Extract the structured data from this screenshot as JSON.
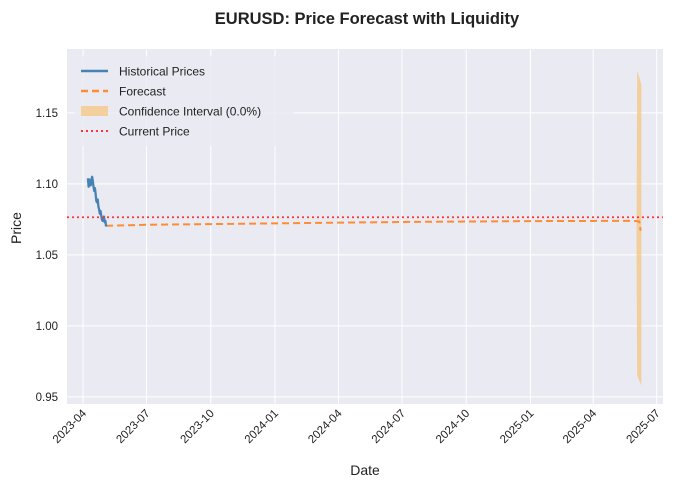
{
  "chart_data": {
    "type": "line",
    "title": "EURUSD: Price Forecast with Liquidity",
    "xlabel": "Date",
    "ylabel": "Price",
    "xlim": [
      "2023-03-09",
      "2025-07-10"
    ],
    "ylim": [
      0.945,
      1.195
    ],
    "x_ticks": [
      "2023-04",
      "2023-07",
      "2023-10",
      "2024-01",
      "2024-04",
      "2024-07",
      "2024-10",
      "2025-01",
      "2025-04",
      "2025-07"
    ],
    "y_ticks": [
      0.95,
      1.0,
      1.05,
      1.1,
      1.15
    ],
    "grid": true,
    "legend_position": "top-left",
    "legend": {
      "historical": "Historical Prices",
      "forecast": "Forecast",
      "ci": "Confidence Interval (0.0%)",
      "current": "Current Price"
    },
    "colors": {
      "historical": "#4682b4",
      "forecast": "#ff8c33",
      "ci_fill": "#f5c580",
      "current": "#ff3333",
      "plot_bg": "#eaeaf2"
    },
    "series": [
      {
        "name": "Historical Prices",
        "style": "solid",
        "points": [
          [
            "2023-04-08",
            1.104
          ],
          [
            "2023-04-09",
            1.098
          ],
          [
            "2023-04-10",
            1.103
          ],
          [
            "2023-04-11",
            1.1
          ],
          [
            "2023-04-12",
            1.099
          ],
          [
            "2023-04-13",
            1.103
          ],
          [
            "2023-04-14",
            1.105
          ],
          [
            "2023-04-15",
            1.102
          ],
          [
            "2023-04-16",
            1.098
          ],
          [
            "2023-04-17",
            1.095
          ],
          [
            "2023-04-18",
            1.097
          ],
          [
            "2023-04-19",
            1.093
          ],
          [
            "2023-04-20",
            1.088
          ],
          [
            "2023-04-21",
            1.087
          ],
          [
            "2023-04-22",
            1.089
          ],
          [
            "2023-04-23",
            1.084
          ],
          [
            "2023-04-24",
            1.082
          ],
          [
            "2023-04-25",
            1.079
          ],
          [
            "2023-04-26",
            1.081
          ],
          [
            "2023-04-27",
            1.078
          ],
          [
            "2023-04-28",
            1.075
          ],
          [
            "2023-04-29",
            1.074
          ],
          [
            "2023-04-30",
            1.075
          ],
          [
            "2023-05-01",
            1.077
          ],
          [
            "2023-05-02",
            1.073
          ],
          [
            "2023-05-03",
            1.074
          ],
          [
            "2023-05-04",
            1.07
          ]
        ]
      },
      {
        "name": "Forecast",
        "style": "dashed",
        "points": [
          [
            "2023-05-04",
            1.0705
          ],
          [
            "2023-07-01",
            1.0712
          ],
          [
            "2024-01-01",
            1.0722
          ],
          [
            "2024-07-01",
            1.0732
          ],
          [
            "2025-01-01",
            1.0738
          ],
          [
            "2025-05-28",
            1.074
          ],
          [
            "2025-06-06",
            1.0735
          ],
          [
            "2025-06-08",
            1.067
          ]
        ]
      },
      {
        "name": "Current Price",
        "style": "dotted",
        "value": 1.0765
      },
      {
        "name": "Confidence Interval (0.0%)",
        "style": "band",
        "points": [
          [
            "2025-06-02",
            1.06,
            1.06
          ],
          [
            "2025-06-03",
            0.965,
            1.18
          ],
          [
            "2025-06-09",
            0.958,
            1.17
          ]
        ]
      }
    ]
  }
}
